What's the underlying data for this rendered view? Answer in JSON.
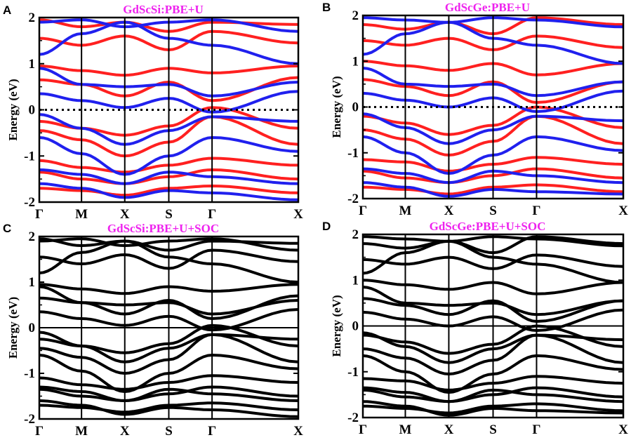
{
  "figure": {
    "title_color": "#ee22ee",
    "zero_line_style_spin": "dotted",
    "zero_line_style_soc": "solid"
  },
  "chart_data": [
    {
      "type": "line",
      "panel": "A",
      "title": "GdScSi:PBE+U",
      "ylabel": "Energy (eV)",
      "ylim": [
        -2,
        2
      ],
      "yticks": [
        "2",
        "1",
        "0",
        "-1",
        "-2"
      ],
      "xticks": [
        "Γ",
        "M",
        "X",
        "S",
        "Γ",
        "X"
      ],
      "series": [
        {
          "color": "#ff2020",
          "bands": [
            [
              1.95,
              1.8,
              1.9,
              1.7,
              1.9,
              1.85
            ],
            [
              1.55,
              1.4,
              1.6,
              1.3,
              1.7,
              1.45
            ],
            [
              0.95,
              0.85,
              0.75,
              0.9,
              0.8,
              0.95
            ],
            [
              0.65,
              0.55,
              0.3,
              0.6,
              0.2,
              0.7
            ],
            [
              -0.25,
              -0.4,
              -0.55,
              -0.35,
              0.05,
              -0.4
            ],
            [
              -0.45,
              -0.65,
              -1.0,
              -0.7,
              -0.15,
              -0.75
            ],
            [
              -1.1,
              -1.25,
              -1.35,
              -1.2,
              -1.05,
              -1.2
            ],
            [
              -1.35,
              -1.5,
              -1.6,
              -1.45,
              -1.3,
              -1.5
            ],
            [
              -1.7,
              -1.75,
              -1.85,
              -1.7,
              -1.65,
              -1.8
            ]
          ]
        },
        {
          "color": "#2020ee",
          "bands": [
            [
              1.9,
              1.95,
              1.8,
              1.9,
              1.95,
              1.7
            ],
            [
              1.2,
              1.65,
              1.9,
              1.55,
              1.4,
              1.0
            ],
            [
              0.9,
              0.55,
              0.5,
              0.55,
              0.3,
              0.6
            ],
            [
              0.35,
              0.2,
              0.05,
              0.25,
              -0.05,
              0.4
            ],
            [
              -0.1,
              -0.4,
              -0.75,
              -0.45,
              -0.15,
              -0.25
            ],
            [
              -0.6,
              -0.95,
              -1.4,
              -1.0,
              -0.6,
              -0.9
            ],
            [
              -1.3,
              -1.4,
              -1.6,
              -1.35,
              -1.45,
              -1.6
            ],
            [
              -1.6,
              -1.7,
              -1.9,
              -1.75,
              -1.8,
              -1.95
            ]
          ]
        }
      ]
    },
    {
      "type": "line",
      "panel": "B",
      "title": "GdScGe:PBE+U",
      "ylabel": "Energy (eV)",
      "ylim": [
        -2,
        2
      ],
      "yticks": [
        "2",
        "1",
        "0",
        "-1",
        "-2"
      ],
      "xticks": [
        "Γ",
        "M",
        "X",
        "S",
        "Γ",
        "X"
      ],
      "series": [
        {
          "color": "#ff2020",
          "bands": [
            [
              1.8,
              1.7,
              1.85,
              1.6,
              1.95,
              1.8
            ],
            [
              1.45,
              1.35,
              1.5,
              1.25,
              1.55,
              1.3
            ],
            [
              1.0,
              0.9,
              0.8,
              0.95,
              0.7,
              0.95
            ],
            [
              0.6,
              0.45,
              0.25,
              0.55,
              0.1,
              0.55
            ],
            [
              -0.2,
              -0.35,
              -0.6,
              -0.4,
              0.0,
              -0.45
            ],
            [
              -0.5,
              -0.7,
              -1.05,
              -0.75,
              -0.2,
              -0.8
            ],
            [
              -1.15,
              -1.2,
              -1.4,
              -1.25,
              -1.1,
              -1.25
            ],
            [
              -1.4,
              -1.55,
              -1.65,
              -1.5,
              -1.35,
              -1.55
            ],
            [
              -1.75,
              -1.8,
              -1.9,
              -1.75,
              -1.7,
              -1.85
            ]
          ]
        },
        {
          "color": "#2020ee",
          "bands": [
            [
              1.95,
              1.9,
              1.85,
              1.95,
              1.9,
              1.75
            ],
            [
              1.15,
              1.6,
              1.85,
              1.5,
              1.35,
              0.95
            ],
            [
              0.85,
              0.5,
              0.45,
              0.5,
              0.25,
              0.55
            ],
            [
              0.3,
              0.15,
              0.0,
              0.2,
              -0.1,
              0.35
            ],
            [
              -0.15,
              -0.45,
              -0.8,
              -0.5,
              -0.2,
              -0.3
            ],
            [
              -0.65,
              -1.0,
              -1.45,
              -1.05,
              -0.65,
              -0.95
            ],
            [
              -1.35,
              -1.45,
              -1.65,
              -1.4,
              -1.5,
              -1.65
            ],
            [
              -1.65,
              -1.75,
              -1.95,
              -1.8,
              -1.85,
              -1.9
            ]
          ]
        }
      ]
    },
    {
      "type": "line",
      "panel": "C",
      "title": "GdScSi:PBE+U+SOC",
      "ylabel": "Energy (eV)",
      "ylim": [
        -2,
        2
      ],
      "yticks": [
        "2",
        "1",
        "0",
        "-1",
        "-2"
      ],
      "xticks": [
        "Γ",
        "M",
        "X",
        "S",
        "Γ",
        "X"
      ],
      "series": [
        {
          "color": "#000000",
          "bands": [
            [
              1.95,
              1.8,
              1.9,
              1.7,
              1.9,
              1.85
            ],
            [
              1.9,
              1.95,
              1.8,
              1.9,
              1.95,
              1.7
            ],
            [
              1.55,
              1.4,
              1.6,
              1.3,
              1.7,
              1.45
            ],
            [
              1.2,
              1.65,
              1.9,
              1.55,
              1.4,
              1.0
            ],
            [
              0.95,
              0.85,
              0.75,
              0.9,
              0.8,
              0.95
            ],
            [
              0.9,
              0.55,
              0.5,
              0.55,
              0.3,
              0.6
            ],
            [
              0.65,
              0.55,
              0.3,
              0.6,
              0.2,
              0.7
            ],
            [
              0.35,
              0.2,
              0.05,
              0.25,
              -0.05,
              0.4
            ],
            [
              -0.1,
              -0.4,
              -0.75,
              -0.45,
              -0.15,
              -0.25
            ],
            [
              -0.25,
              -0.4,
              -0.55,
              -0.35,
              0.05,
              -0.4
            ],
            [
              -0.45,
              -0.65,
              -1.0,
              -0.7,
              -0.15,
              -0.75
            ],
            [
              -0.6,
              -0.95,
              -1.4,
              -1.0,
              -0.6,
              -0.9
            ],
            [
              -1.1,
              -1.25,
              -1.35,
              -1.2,
              -1.05,
              -1.2
            ],
            [
              -1.3,
              -1.4,
              -1.6,
              -1.35,
              -1.45,
              -1.6
            ],
            [
              -1.35,
              -1.5,
              -1.6,
              -1.45,
              -1.3,
              -1.5
            ],
            [
              -1.6,
              -1.7,
              -1.9,
              -1.75,
              -1.8,
              -1.95
            ],
            [
              -1.7,
              -1.75,
              -1.85,
              -1.7,
              -1.65,
              -1.8
            ]
          ]
        }
      ]
    },
    {
      "type": "line",
      "panel": "D",
      "title": "GdScGe:PBE+U+SOC",
      "ylabel": "Energy (eV)",
      "ylim": [
        -2,
        2
      ],
      "yticks": [
        "2",
        "1",
        "0",
        "-1",
        "-2"
      ],
      "xticks": [
        "Γ",
        "M",
        "X",
        "S",
        "Γ",
        "X"
      ],
      "series": [
        {
          "color": "#000000",
          "bands": [
            [
              1.8,
              1.7,
              1.85,
              1.6,
              1.95,
              1.8
            ],
            [
              1.95,
              1.9,
              1.85,
              1.95,
              1.9,
              1.75
            ],
            [
              1.45,
              1.35,
              1.5,
              1.25,
              1.55,
              1.3
            ],
            [
              1.15,
              1.6,
              1.85,
              1.5,
              1.35,
              0.95
            ],
            [
              1.0,
              0.9,
              0.8,
              0.95,
              0.7,
              0.95
            ],
            [
              0.85,
              0.5,
              0.45,
              0.5,
              0.25,
              0.55
            ],
            [
              0.6,
              0.45,
              0.25,
              0.55,
              0.1,
              0.55
            ],
            [
              0.3,
              0.15,
              0.0,
              0.2,
              -0.1,
              0.35
            ],
            [
              -0.15,
              -0.45,
              -0.8,
              -0.5,
              -0.2,
              -0.3
            ],
            [
              -0.2,
              -0.35,
              -0.6,
              -0.4,
              0.0,
              -0.45
            ],
            [
              -0.5,
              -0.7,
              -1.05,
              -0.75,
              -0.2,
              -0.8
            ],
            [
              -0.65,
              -1.0,
              -1.45,
              -1.05,
              -0.65,
              -0.95
            ],
            [
              -1.15,
              -1.2,
              -1.4,
              -1.25,
              -1.1,
              -1.25
            ],
            [
              -1.35,
              -1.45,
              -1.65,
              -1.4,
              -1.5,
              -1.65
            ],
            [
              -1.4,
              -1.55,
              -1.65,
              -1.5,
              -1.35,
              -1.55
            ],
            [
              -1.65,
              -1.75,
              -1.95,
              -1.8,
              -1.85,
              -1.9
            ],
            [
              -1.75,
              -1.8,
              -1.9,
              -1.75,
              -1.7,
              -1.85
            ]
          ]
        }
      ]
    }
  ]
}
